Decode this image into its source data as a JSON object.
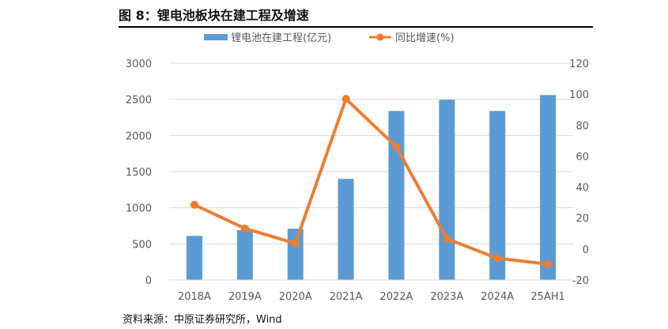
{
  "title": "图 8：锂电池板块在建工程及增速",
  "source": "资料来源：中原证券研究所，Wind",
  "chart_data": {
    "type": "bar+line",
    "categories": [
      "2018A",
      "2019A",
      "2020A",
      "2021A",
      "2022A",
      "2023A",
      "2024A",
      "25AH1"
    ],
    "series": [
      {
        "name": "锂电池在建工程(亿元)",
        "type": "bar",
        "axis": "left",
        "color": "#5B9BD5",
        "values": [
          610,
          690,
          710,
          1400,
          2340,
          2495,
          2340,
          2560
        ]
      },
      {
        "name": "同比增速(%)",
        "type": "line",
        "axis": "right",
        "color": "#ED7D31",
        "values": [
          28.6,
          13.3,
          3.6,
          97,
          66,
          6.6,
          -6,
          -9.7
        ]
      }
    ],
    "ylim_left": [
      0,
      3000
    ],
    "yticks_left": [
      "0",
      "500",
      "1000",
      "1500",
      "2000",
      "2500",
      "3000"
    ],
    "ylim_right": [
      -20,
      120
    ],
    "yticks_right": [
      "-20",
      "0",
      "20",
      "40",
      "60",
      "80",
      "100",
      "120"
    ],
    "grid": true,
    "legend": "top"
  }
}
